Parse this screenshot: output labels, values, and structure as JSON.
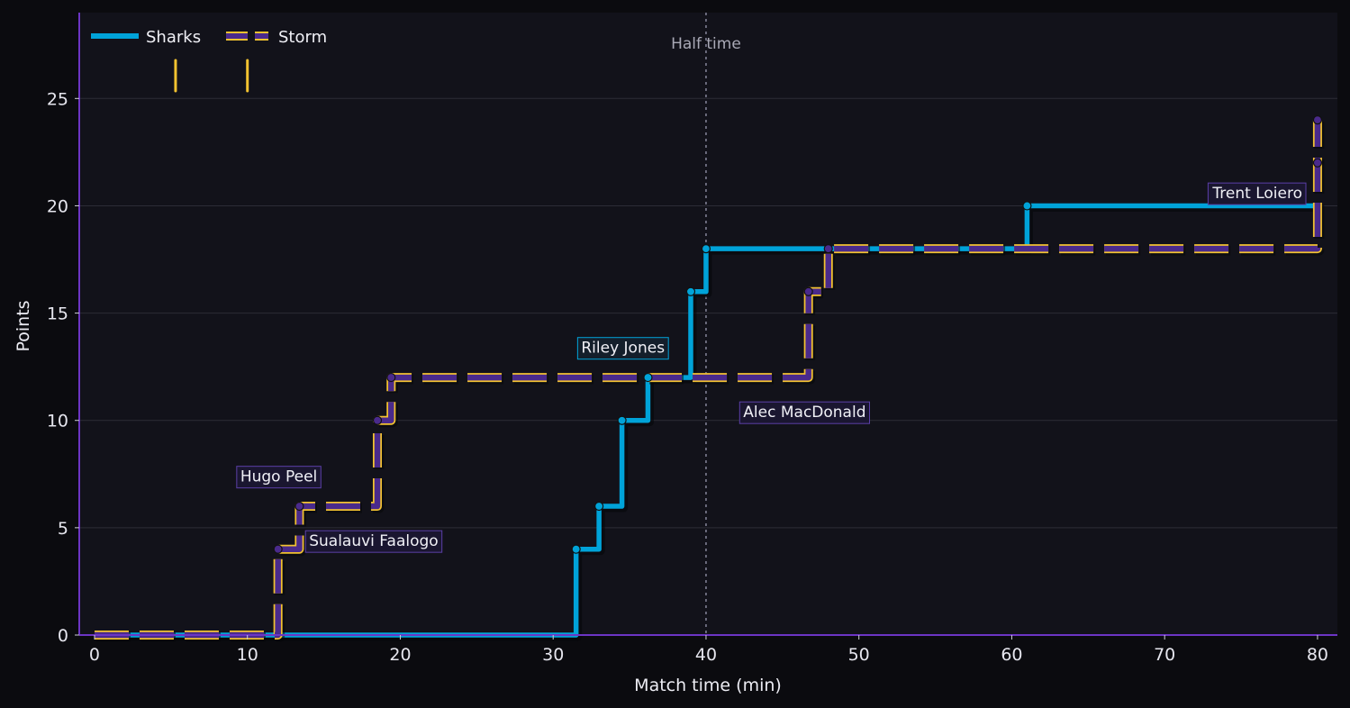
{
  "chart_data": {
    "type": "line",
    "step": "post",
    "title": "",
    "xlabel": "Match time (min)",
    "ylabel": "Points",
    "xlim": [
      -1,
      81.3
    ],
    "ylim": [
      0,
      29
    ],
    "xticks": [
      0,
      10,
      20,
      30,
      40,
      50,
      60,
      70,
      80
    ],
    "yticks": [
      0,
      5,
      10,
      15,
      20,
      25
    ],
    "grid": "horizontal",
    "legend_position": "top-left",
    "colors": {
      "background": "#0b0b0f",
      "plot_background": "#12121a",
      "gridline": "#2c2c36",
      "axis": "#6c35c4",
      "sharks": "#00a3d9",
      "storm_fill": "#4a2a8c",
      "storm_edge": "#f2c230",
      "half_line": "#85859a"
    },
    "series": [
      {
        "name": "Sharks",
        "style": "solid",
        "x": [
          0,
          31.5,
          33,
          34.5,
          36.2,
          39,
          40,
          61,
          80
        ],
        "y": [
          0,
          4,
          6,
          10,
          12,
          16,
          18,
          20,
          20
        ],
        "markers": [
          [
            31.5,
            4
          ],
          [
            33,
            6
          ],
          [
            34.5,
            10
          ],
          [
            36.2,
            12
          ],
          [
            39,
            16
          ],
          [
            40,
            18
          ],
          [
            61,
            20
          ]
        ]
      },
      {
        "name": "Storm",
        "style": "dashed",
        "x": [
          0,
          12,
          13.4,
          18.5,
          19.4,
          46.7,
          48,
          80,
          80,
          80
        ],
        "y": [
          0,
          4,
          6,
          10,
          12,
          16,
          18,
          18,
          22,
          24
        ],
        "markers": [
          [
            12,
            4
          ],
          [
            13.4,
            6
          ],
          [
            18.5,
            10
          ],
          [
            19.4,
            12
          ],
          [
            46.7,
            16
          ],
          [
            48,
            18
          ],
          [
            80,
            22
          ],
          [
            80,
            24
          ]
        ]
      }
    ],
    "reference_line": {
      "x": 40,
      "label": "Half time"
    },
    "annotations": [
      {
        "text": "Hugo Peel",
        "series": "Storm",
        "x": 9.3,
        "y": 7.4
      },
      {
        "text": "Sualauvi Faalogo",
        "series": "Storm",
        "x": 13.8,
        "y": 4.4
      },
      {
        "text": "Riley Jones",
        "series": "Sharks",
        "x": 31.6,
        "y": 13.4
      },
      {
        "text": "Alec MacDonald",
        "series": "Storm",
        "x": 42.2,
        "y": 10.4
      },
      {
        "text": "Trent Loiero",
        "series": "Storm",
        "x": 72.9,
        "y": 20.6
      }
    ],
    "sin_bins": [
      5.3,
      10
    ]
  }
}
